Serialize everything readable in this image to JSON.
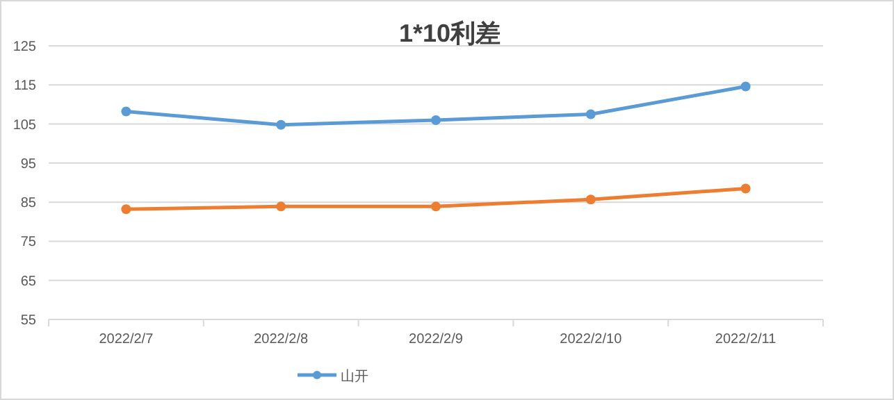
{
  "chart_data": {
    "type": "line",
    "title": "1*10利差",
    "categories": [
      "2022/2/7",
      "2022/2/8",
      "2022/2/9",
      "2022/2/10",
      "2022/2/11"
    ],
    "series": [
      {
        "name": "山开",
        "color": "#5b9bd5",
        "values": [
          108.2,
          104.8,
          106.0,
          107.5,
          114.6
        ]
      },
      {
        "color": "#ed7d31",
        "values": [
          83.2,
          83.9,
          83.9,
          85.7,
          88.5
        ]
      }
    ],
    "ylim": [
      55,
      125
    ],
    "yticks": [
      55,
      65,
      75,
      85,
      95,
      105,
      115,
      125
    ],
    "grid": "y",
    "legend": "bottom",
    "marker": "circle",
    "line_style": "solid"
  }
}
